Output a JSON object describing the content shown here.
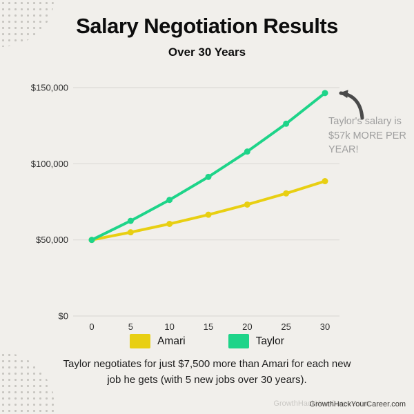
{
  "title": "Salary Negotiation Results",
  "subtitle": "Over 30 Years",
  "chart_data": {
    "type": "line",
    "title": "Salary Negotiation Results",
    "subtitle": "Over 30 Years",
    "x": [
      0,
      5,
      10,
      15,
      20,
      25,
      30
    ],
    "xtick_labels": [
      "0",
      "5",
      "10",
      "15",
      "20",
      "25",
      "30"
    ],
    "series": [
      {
        "name": "Amari",
        "color": "#e8cf12",
        "values": [
          50000,
          55000,
          60500,
          66550,
          73205,
          80526,
          88578
        ]
      },
      {
        "name": "Taylor",
        "color": "#1ed489",
        "values": [
          50000,
          62500,
          76250,
          91375,
          108013,
          126314,
          146445
        ]
      }
    ],
    "ylim": [
      0,
      150000
    ],
    "yticks": [
      0,
      50000,
      100000,
      150000
    ],
    "ytick_labels": [
      "$0",
      "$50,000",
      "$100,000",
      "$150,000"
    ],
    "xlabel": "",
    "ylabel": "",
    "grid": true,
    "legend_position": "bottom"
  },
  "annotation": {
    "text": "Taylor's salary is $57k MORE PER YEAR!"
  },
  "legend": [
    {
      "label": "Amari",
      "color": "#e8cf12"
    },
    {
      "label": "Taylor",
      "color": "#1ed489"
    }
  ],
  "caption": "Taylor negotiates for just $7,500 more than Amari for each new job he gets (with 5 new jobs over 30 years).",
  "watermark": "GrowthHackYourCareer.com",
  "colors": {
    "background": "#f1efeb",
    "grid": "#dcdad5",
    "axis_text": "#2e2e2e",
    "annotation_text": "#9e9e9e",
    "arrow": "#4a4a4a",
    "amari": "#e8cf12",
    "taylor": "#1ed489"
  }
}
